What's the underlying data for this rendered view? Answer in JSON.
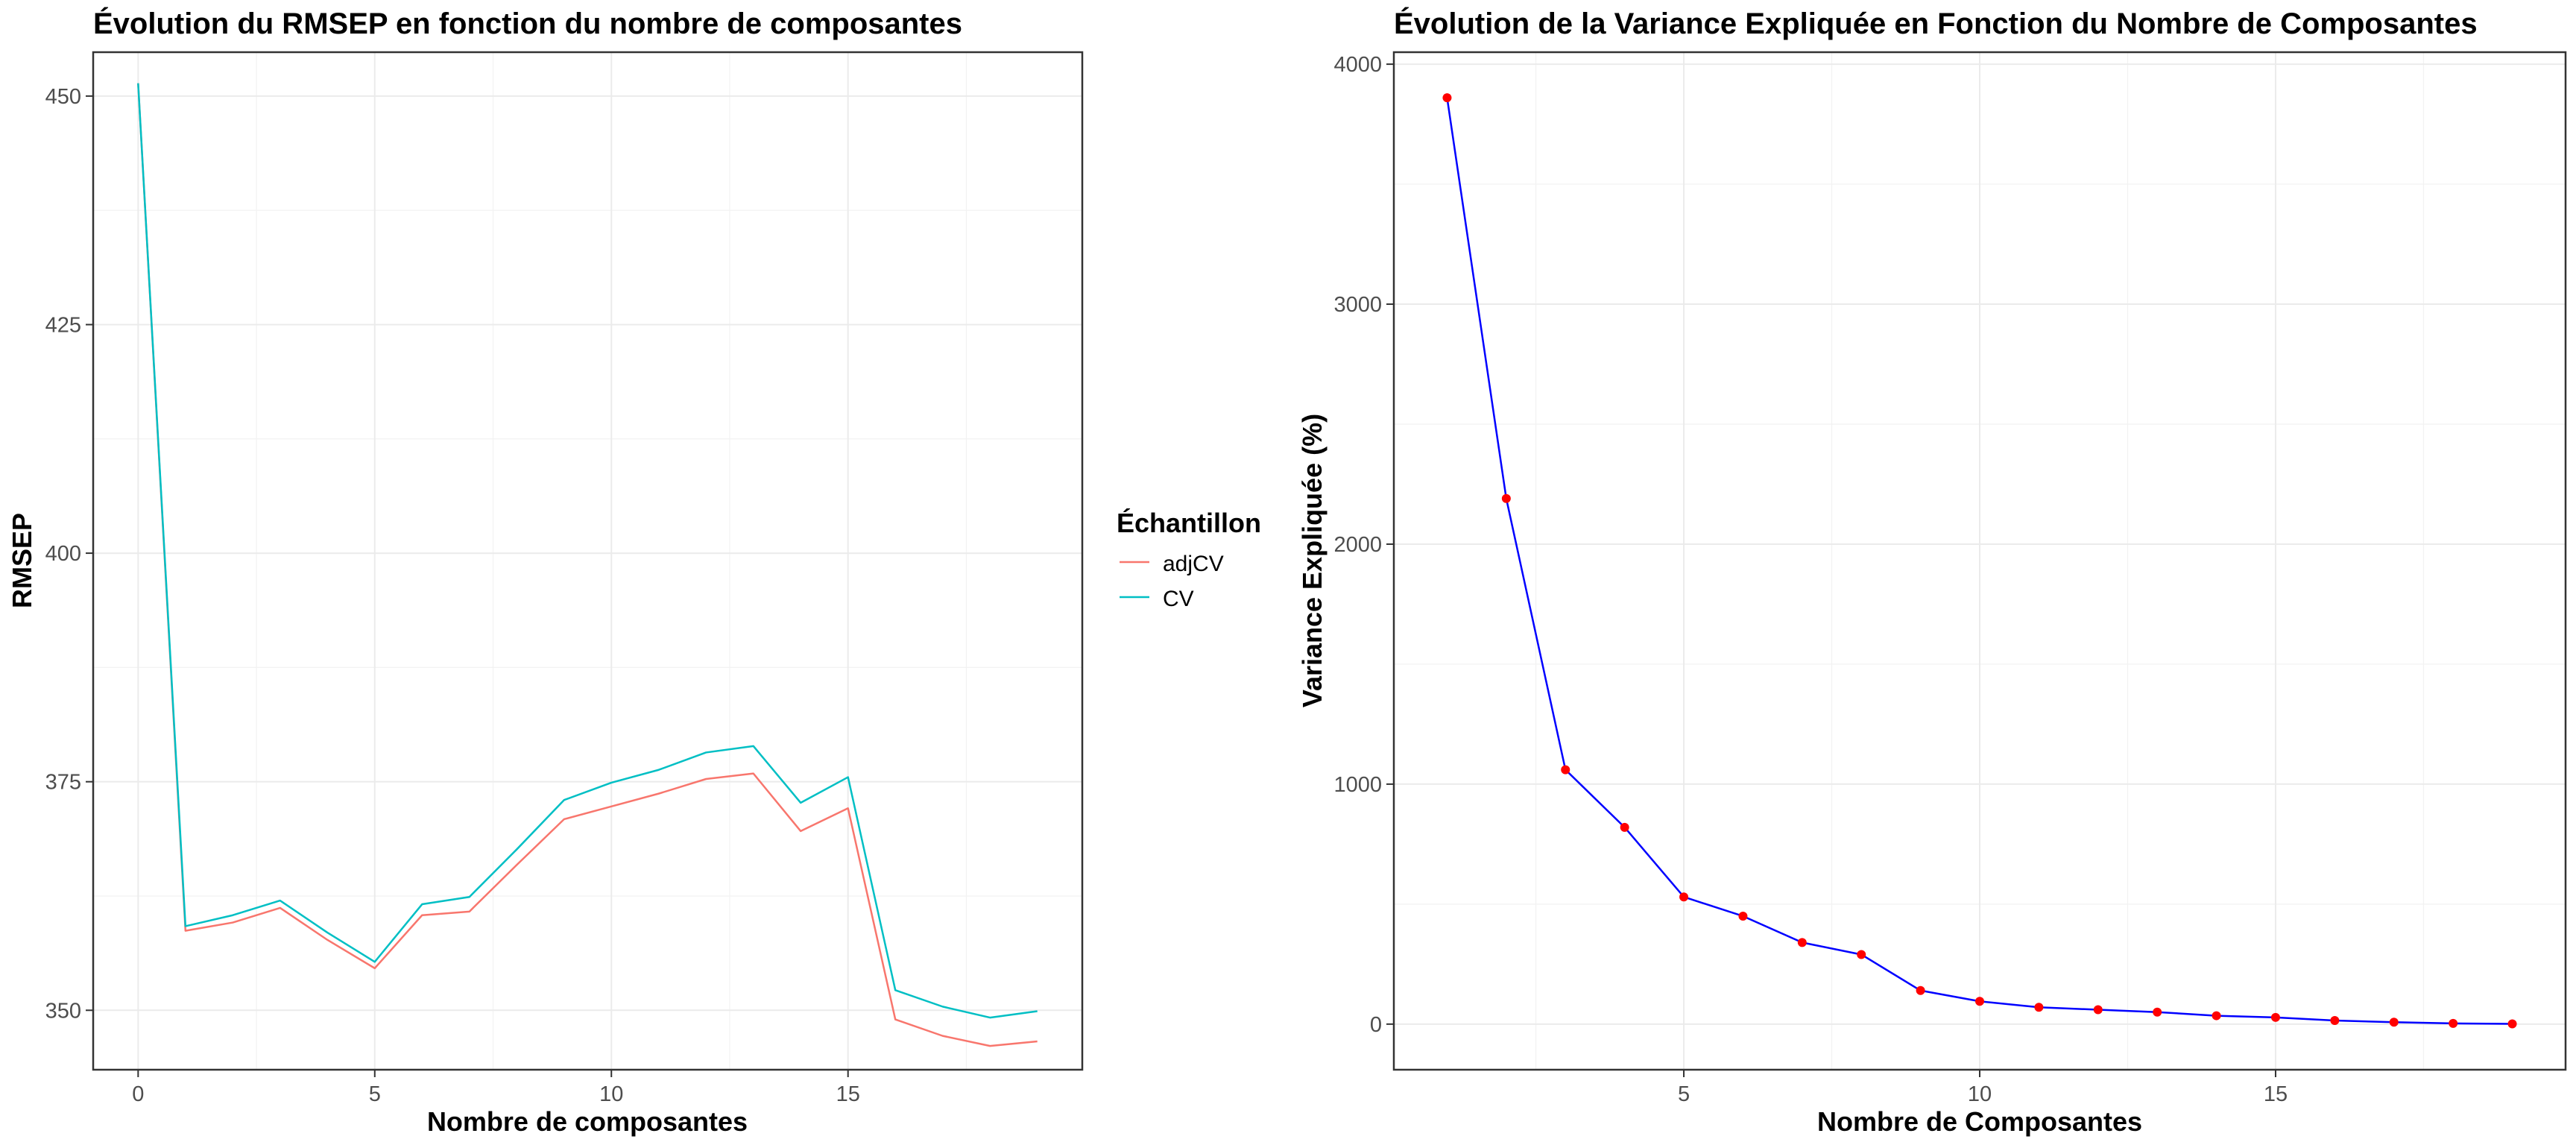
{
  "chart_data": [
    {
      "type": "line",
      "title": "Évolution du RMSEP en fonction du nombre de composantes",
      "xlabel": "Nombre de composantes",
      "ylabel": "RMSEP",
      "xlim": [
        -0.95,
        19.95
      ],
      "ylim": [
        343.5,
        454.8
      ],
      "x_ticks": [
        0,
        5,
        10,
        15
      ],
      "y_ticks": [
        350,
        375,
        400,
        425,
        450
      ],
      "grid": true,
      "legend": {
        "title": "Échantillon",
        "position": "right"
      },
      "x": [
        0,
        1,
        2,
        3,
        4,
        5,
        6,
        7,
        8,
        9,
        10,
        11,
        12,
        13,
        14,
        15,
        16,
        17,
        18,
        19
      ],
      "series": [
        {
          "name": "adjCV",
          "color": "#F8766D",
          "values": [
            451.4,
            358.7,
            359.6,
            361.2,
            357.7,
            354.6,
            360.4,
            360.8,
            365.9,
            370.9,
            372.3,
            373.7,
            375.3,
            375.9,
            369.6,
            372.1,
            349.0,
            347.2,
            346.1,
            346.6
          ]
        },
        {
          "name": "CV",
          "color": "#00BFC4",
          "values": [
            451.4,
            359.2,
            360.4,
            362.0,
            358.5,
            355.3,
            361.6,
            362.4,
            367.6,
            373.0,
            374.9,
            376.3,
            378.2,
            378.9,
            372.7,
            375.5,
            352.2,
            350.4,
            349.2,
            349.9
          ]
        }
      ]
    },
    {
      "type": "line",
      "title": "Évolution de la Variance Expliquée en Fonction du Nombre de Composantes",
      "xlabel": "Nombre de Composantes",
      "ylabel": "Variance Expliquée (%)",
      "xlim": [
        0.1,
        19.9
      ],
      "ylim": [
        -190,
        4050
      ],
      "x_ticks": [
        5,
        10,
        15
      ],
      "y_ticks": [
        0,
        1000,
        2000,
        3000,
        4000
      ],
      "grid": true,
      "line_color": "#0000FF",
      "point_color": "#FF0000",
      "x": [
        1,
        2,
        3,
        4,
        5,
        6,
        7,
        8,
        9,
        10,
        11,
        12,
        13,
        14,
        15,
        16,
        17,
        18,
        19
      ],
      "values": [
        3860,
        2190,
        1060,
        820,
        530,
        450,
        340,
        290,
        140,
        95,
        70,
        60,
        50,
        35,
        28,
        15,
        8,
        3,
        1
      ]
    }
  ]
}
